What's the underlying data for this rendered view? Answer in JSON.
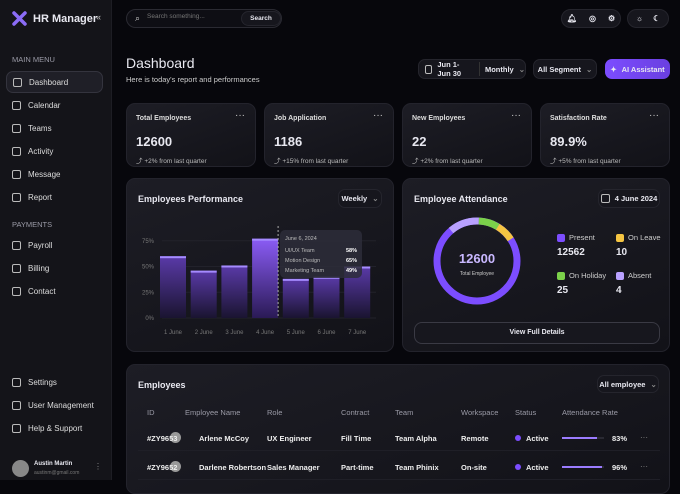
{
  "app": {
    "title": "HR Manager",
    "collapse_icon": "chevrons-left-icon"
  },
  "search": {
    "placeholder": "Search something...",
    "button": "Search"
  },
  "sidebar": {
    "main_menu_label": "MAIN MENU",
    "main_items": [
      {
        "label": "Dashboard",
        "icon": "grid-icon",
        "active": true
      },
      {
        "label": "Calendar",
        "icon": "calendar-icon"
      },
      {
        "label": "Teams",
        "icon": "users-icon"
      },
      {
        "label": "Activity",
        "icon": "activity-icon"
      },
      {
        "label": "Message",
        "icon": "message-icon"
      },
      {
        "label": "Report",
        "icon": "report-icon"
      }
    ],
    "payments_label": "PAYMENTS",
    "payment_items": [
      {
        "label": "Payroll",
        "icon": "coins-icon"
      },
      {
        "label": "Billing",
        "icon": "billing-icon"
      },
      {
        "label": "Contact",
        "icon": "contact-icon"
      }
    ],
    "bottom_items": [
      {
        "label": "Settings",
        "icon": "gear-icon"
      },
      {
        "label": "User Management",
        "icon": "user-gear-icon"
      },
      {
        "label": "Help & Support",
        "icon": "headset-icon"
      }
    ],
    "user": {
      "name": "Austin Martin",
      "email": "austinm@gmail.com"
    }
  },
  "header": {
    "title": "Dashboard",
    "subtitle": "Here is today's report and performances",
    "date_range": "Jun 1- Jun 30",
    "period": "Monthly",
    "segment": "All Segment",
    "ai_button": "AI Assistant"
  },
  "stats": [
    {
      "title": "Total Employees",
      "value": "12600",
      "change": "+2% from last quarter"
    },
    {
      "title": "Job Application",
      "value": "1186",
      "change": "+15% from last quarter"
    },
    {
      "title": "New Employees",
      "value": "22",
      "change": "+2% from last quarter"
    },
    {
      "title": "Satisfaction Rate",
      "value": "89.9%",
      "change": "+5% from last quarter"
    }
  ],
  "performance": {
    "title": "Employees Performance",
    "period": "Weekly",
    "tooltip": {
      "date": "June 6, 2024",
      "rows": [
        {
          "label": "UI/UX Team",
          "value": "58%"
        },
        {
          "label": "Motion Design",
          "value": "65%"
        },
        {
          "label": "Marketing Team",
          "value": "49%"
        }
      ]
    }
  },
  "chart_data": {
    "type": "bar",
    "categories": [
      "1 June",
      "2 June",
      "3 June",
      "4 June",
      "5 June",
      "6 June",
      "7 June"
    ],
    "values": [
      60,
      46,
      51,
      77,
      38,
      40,
      50
    ],
    "highlighted": "4 June",
    "yticks": [
      "0%",
      "25%",
      "50%",
      "75%"
    ],
    "ylim": [
      0,
      100
    ],
    "grid": true,
    "bar_color": "#8b5cf6"
  },
  "attendance": {
    "title": "Employee Attendance",
    "date": "4 June 2024",
    "total": "12600",
    "total_label": "Total Employee",
    "items": [
      {
        "label": "Present",
        "value": "12562",
        "color": "#7c4dff"
      },
      {
        "label": "On Leave",
        "value": "10",
        "color": "#f5c542"
      },
      {
        "label": "On Holiday",
        "value": "25",
        "color": "#7bd14a"
      },
      {
        "label": "Absent",
        "value": "4",
        "color": "#b9a1ff"
      }
    ],
    "button": "View Full Details"
  },
  "employees": {
    "title": "Employees",
    "filter": "All employee",
    "columns": [
      "ID",
      "Employee Name",
      "Role",
      "Contract",
      "Team",
      "Workspace",
      "Status",
      "Attendance Rate"
    ],
    "rows": [
      {
        "id": "#ZY9653",
        "name": "Arlene McCoy",
        "role": "UX Engineer",
        "contract": "Fill Time",
        "team": "Team Alpha",
        "workspace": "Remote",
        "status": "Active",
        "rate": "83%",
        "rate_value": 83
      },
      {
        "id": "#ZY9652",
        "name": "Darlene Robertson",
        "role": "Sales Manager",
        "contract": "Part-time",
        "team": "Team Phinix",
        "workspace": "On-site",
        "status": "Active",
        "rate": "96%",
        "rate_value": 96
      }
    ]
  },
  "colors": {
    "accent": "#7c4dff",
    "bg": "#07070c"
  }
}
